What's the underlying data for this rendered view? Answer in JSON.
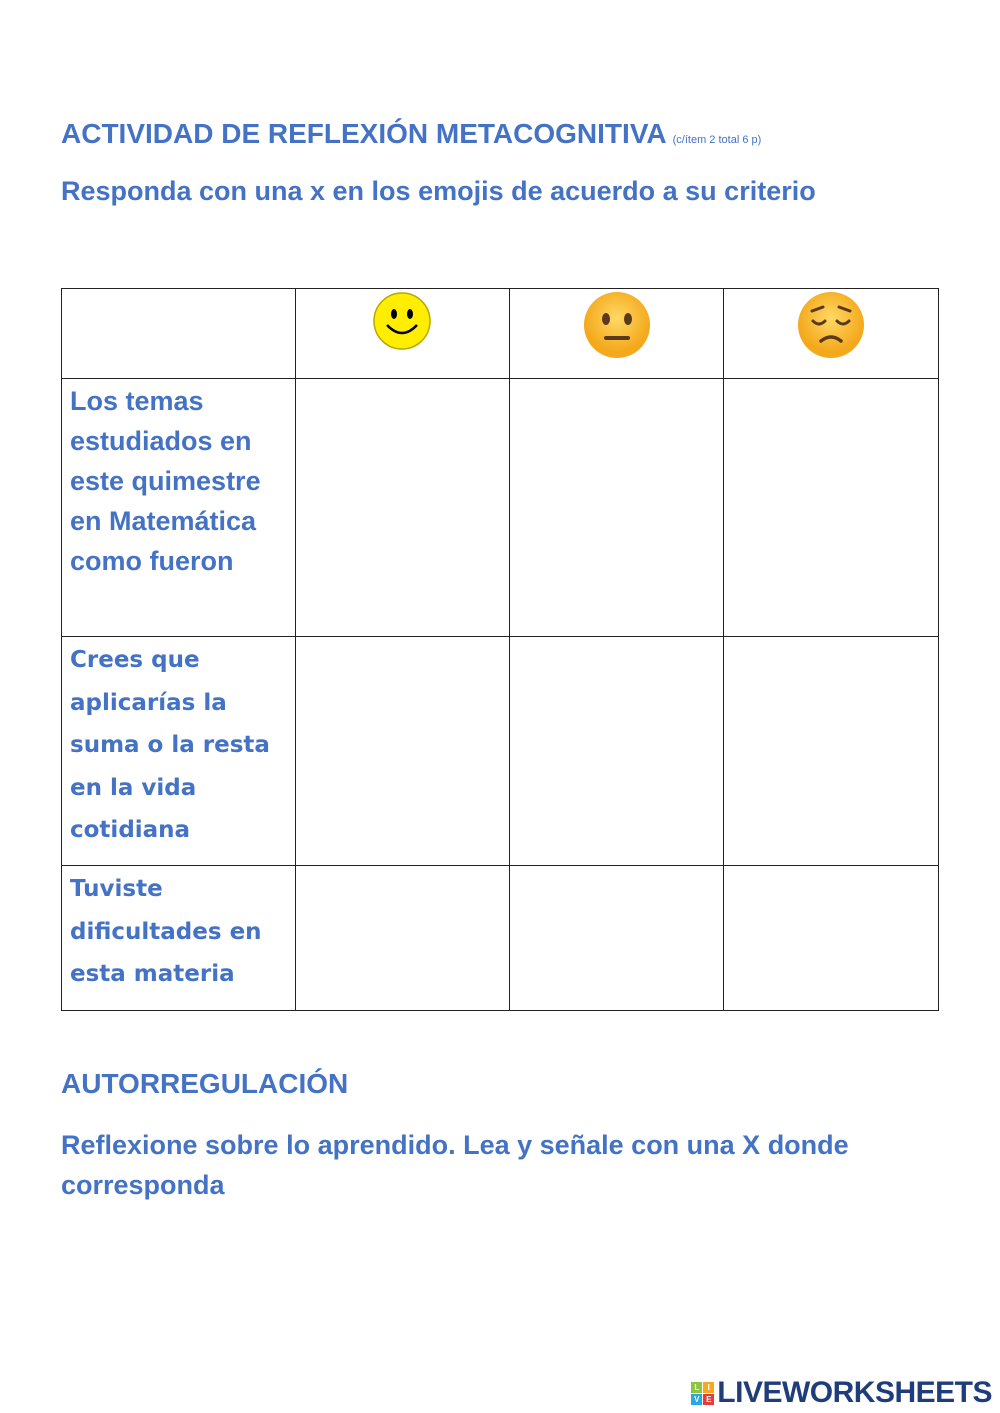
{
  "title": "ACTIVIDAD DE REFLEXIÓN METACOGNITIVA",
  "title_note": "(c/ítem 2 total 6 p)",
  "instruction": "Responda con una x en los emojis de acuerdo a su criterio",
  "table": {
    "header_icons": [
      "happy-face-icon",
      "neutral-face-icon",
      "sad-face-icon"
    ],
    "rows": [
      {
        "question": "Los temas estudiados en este quimestre en Matemática como fueron"
      },
      {
        "question": "Crees que aplicarías la suma o la resta en la vida cotidiana"
      },
      {
        "question": "Tuviste dificultades en esta materia"
      }
    ]
  },
  "section2_title": "AUTORREGULACIÓN",
  "section2_instruction": "Reflexione sobre lo aprendido. Lea y señale con una X donde corresponda",
  "logo": {
    "text": "LIVEWORKSHEETS",
    "blocks": [
      "L",
      "I",
      "V",
      "E"
    ]
  },
  "colors": {
    "text": "#4472c4",
    "logo": "#1f3d7a"
  }
}
